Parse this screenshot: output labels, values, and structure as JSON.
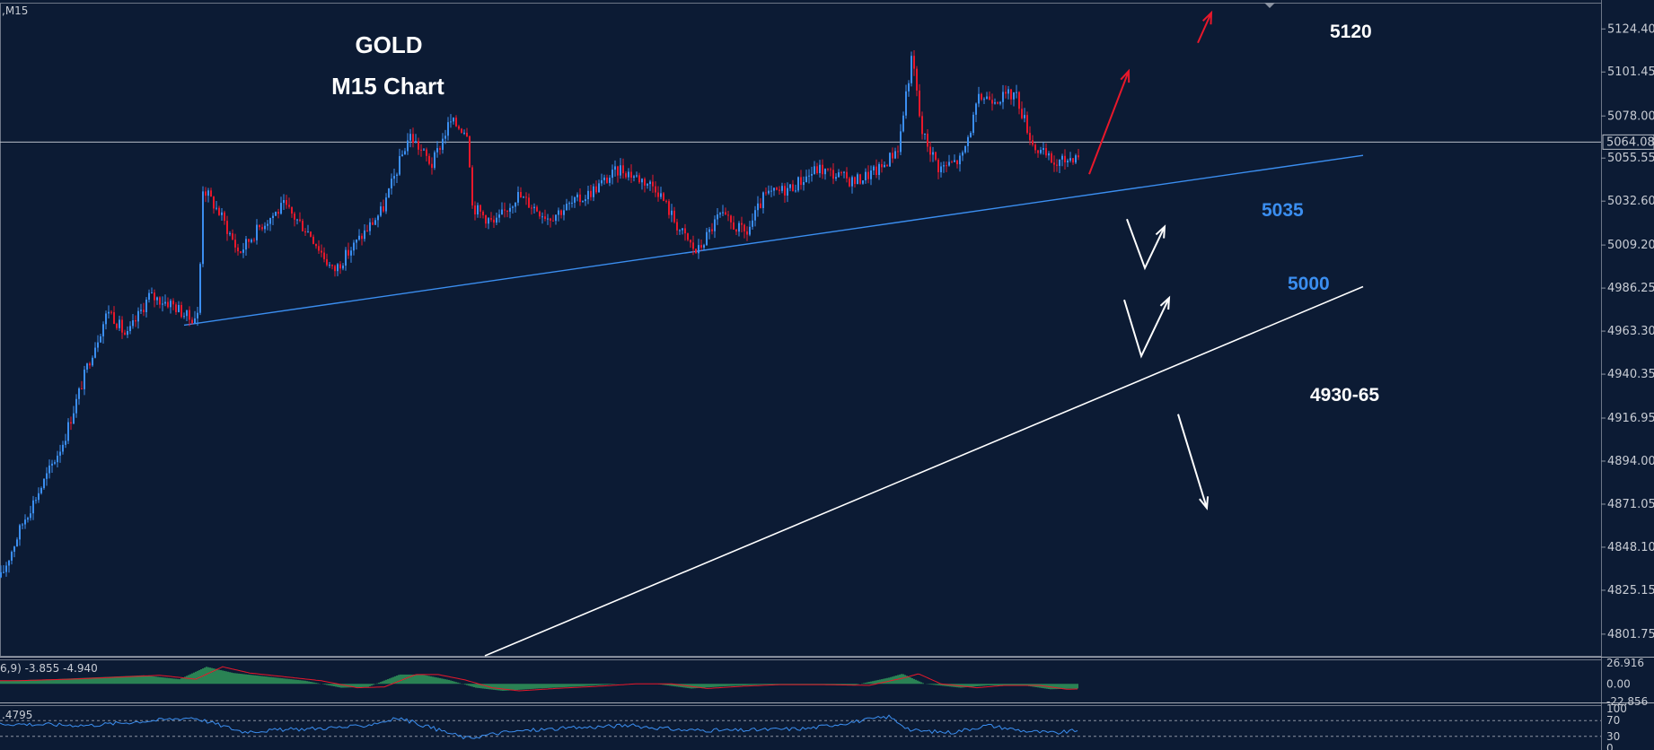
{
  "symbol_label": ",M15",
  "chart_data": {
    "type": "candlestick",
    "title": "GOLD",
    "subtitle": "M15 Chart",
    "ylim": [
      4790.2,
      5136.0
    ],
    "y_ticks": [
      "5124.40",
      "5101.45",
      "5078.00",
      "5055.55",
      "5032.60",
      "5009.20",
      "4986.25",
      "4963.30",
      "4940.35",
      "4916.95",
      "4894.00",
      "4871.05",
      "4848.10",
      "4825.15",
      "4801.75"
    ],
    "current_price": "5064.08",
    "price_path": [
      [
        0,
        4832
      ],
      [
        25,
        4862
      ],
      [
        50,
        4885
      ],
      [
        70,
        4905
      ],
      [
        100,
        4950
      ],
      [
        120,
        4975
      ],
      [
        140,
        4960
      ],
      [
        165,
        4982
      ],
      [
        190,
        4978
      ],
      [
        210,
        4970
      ],
      [
        220,
        4972
      ],
      [
        225,
        5040
      ],
      [
        245,
        5025
      ],
      [
        265,
        5005
      ],
      [
        290,
        5020
      ],
      [
        315,
        5030
      ],
      [
        345,
        5015
      ],
      [
        370,
        4995
      ],
      [
        395,
        5010
      ],
      [
        425,
        5028
      ],
      [
        455,
        5068
      ],
      [
        480,
        5052
      ],
      [
        500,
        5075
      ],
      [
        520,
        5070
      ],
      [
        525,
        5030
      ],
      [
        550,
        5020
      ],
      [
        575,
        5036
      ],
      [
        610,
        5024
      ],
      [
        650,
        5035
      ],
      [
        690,
        5050
      ],
      [
        730,
        5040
      ],
      [
        755,
        5018
      ],
      [
        775,
        5005
      ],
      [
        800,
        5025
      ],
      [
        830,
        5015
      ],
      [
        850,
        5035
      ],
      [
        880,
        5040
      ],
      [
        910,
        5050
      ],
      [
        950,
        5043
      ],
      [
        980,
        5050
      ],
      [
        1000,
        5062
      ],
      [
        1008,
        5090
      ],
      [
        1015,
        5110
      ],
      [
        1025,
        5070
      ],
      [
        1045,
        5050
      ],
      [
        1070,
        5055
      ],
      [
        1090,
        5088
      ],
      [
        1115,
        5088
      ],
      [
        1130,
        5090
      ],
      [
        1150,
        5062
      ],
      [
        1175,
        5052
      ],
      [
        1200,
        5058
      ]
    ],
    "support_trendline": {
      "from": [
        205,
        4966.5
      ],
      "to": [
        1518,
        5057.0
      ]
    },
    "lower_trendline": {
      "from": [
        540,
        4790.2
      ],
      "to": [
        1518,
        4987.0
      ]
    },
    "projection_arrows": [
      {
        "color": "#e8182b",
        "points": [
          [
            1213,
            5047
          ],
          [
            1257,
            5102
          ]
        ]
      },
      {
        "color": "#e8182b",
        "points": [
          [
            1334,
            5117
          ],
          [
            1349,
            5133
          ]
        ]
      },
      {
        "color": "#ffffff",
        "points": [
          [
            1255,
            5023
          ],
          [
            1275,
            4997
          ],
          [
            1297,
            5019
          ]
        ]
      },
      {
        "color": "#ffffff",
        "points": [
          [
            1252,
            4980
          ],
          [
            1271,
            4950
          ],
          [
            1302,
            4981
          ]
        ]
      },
      {
        "color": "#ffffff",
        "points": [
          [
            1312,
            4919
          ],
          [
            1344,
            4869
          ]
        ]
      }
    ],
    "annotations": [
      {
        "text": "5120",
        "color": "#ffffff"
      },
      {
        "text": "5035",
        "color": "#3b8ef0"
      },
      {
        "text": "5000",
        "color": "#3b8ef0"
      },
      {
        "text": "4930-65",
        "color": "#ffffff"
      }
    ],
    "indicator1": {
      "label": "6,9) -3.855 -4.940",
      "ticks": [
        "26.916",
        "0.00",
        "-22.856"
      ],
      "range": [
        -22.856,
        26.916
      ],
      "histogram_path": [
        [
          0,
          4
        ],
        [
          60,
          6
        ],
        [
          120,
          9
        ],
        [
          160,
          11
        ],
        [
          200,
          6
        ],
        [
          230,
          22
        ],
        [
          260,
          14
        ],
        [
          300,
          9
        ],
        [
          340,
          4
        ],
        [
          380,
          -5
        ],
        [
          410,
          -4
        ],
        [
          445,
          12
        ],
        [
          470,
          12
        ],
        [
          500,
          5
        ],
        [
          530,
          -5
        ],
        [
          560,
          -9
        ],
        [
          600,
          -6
        ],
        [
          650,
          -3
        ],
        [
          690,
          0
        ],
        [
          730,
          0
        ],
        [
          770,
          -6
        ],
        [
          810,
          -3
        ],
        [
          850,
          -1
        ],
        [
          900,
          -1
        ],
        [
          950,
          -2
        ],
        [
          990,
          8
        ],
        [
          1005,
          13
        ],
        [
          1030,
          0
        ],
        [
          1070,
          -5
        ],
        [
          1100,
          -2
        ],
        [
          1140,
          -2
        ],
        [
          1170,
          -7
        ],
        [
          1200,
          -6
        ]
      ]
    },
    "indicator2": {
      "label": ".4795",
      "ticks": [
        "100",
        "70",
        "30",
        "0"
      ],
      "range": [
        0,
        100
      ],
      "line_path": [
        [
          0,
          62
        ],
        [
          100,
          58
        ],
        [
          215,
          78
        ],
        [
          270,
          42
        ],
        [
          330,
          48
        ],
        [
          400,
          55
        ],
        [
          445,
          76
        ],
        [
          520,
          25
        ],
        [
          560,
          40
        ],
        [
          600,
          47
        ],
        [
          700,
          58
        ],
        [
          760,
          46
        ],
        [
          820,
          45
        ],
        [
          900,
          50
        ],
        [
          990,
          80
        ],
        [
          1015,
          45
        ],
        [
          1060,
          40
        ],
        [
          1100,
          58
        ],
        [
          1140,
          44
        ],
        [
          1175,
          38
        ],
        [
          1200,
          45
        ]
      ]
    }
  }
}
